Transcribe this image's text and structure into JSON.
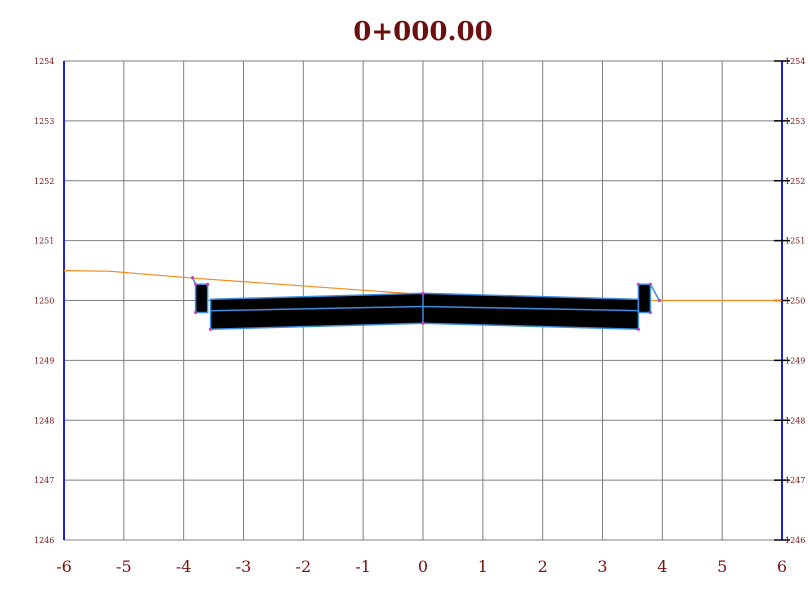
{
  "title": "0+000.00",
  "axes": {
    "x_ticks": [
      -6,
      -5,
      -4,
      -3,
      -2,
      -1,
      0,
      1,
      2,
      3,
      4,
      5,
      6
    ],
    "y_ticks": [
      1246,
      1247,
      1248,
      1249,
      1250,
      1251,
      1252,
      1253,
      1254
    ],
    "x_range": [
      -6,
      6
    ],
    "y_range": [
      1246,
      1254
    ],
    "grid": true
  },
  "colors": {
    "frame": "#1f1fd6",
    "ground_line": "#f08a1c",
    "pavement_fill": "#000000",
    "pavement_edge": "#3a8de0",
    "text": "#7a1010"
  },
  "section": {
    "ground_line": [
      [
        -6,
        1250.5
      ],
      [
        -5.25,
        1250.49
      ],
      [
        -3.8,
        1250.37
      ],
      [
        0,
        1250.1
      ],
      [
        1,
        1250.02
      ],
      [
        4,
        1250.0
      ],
      [
        6,
        1250.0
      ]
    ],
    "pavement_outer": [
      [
        -3.55,
        1250.02
      ],
      [
        0,
        1250.12
      ],
      [
        3.6,
        1250.02
      ],
      [
        3.6,
        1249.52
      ],
      [
        0,
        1249.62
      ],
      [
        -3.55,
        1249.52
      ]
    ],
    "layer_lines": [
      [
        [
          -3.55,
          1249.83
        ],
        [
          0,
          1249.9
        ],
        [
          3.6,
          1249.83
        ]
      ]
    ],
    "centerline": [
      [
        0,
        1250.12
      ],
      [
        0,
        1249.62
      ]
    ],
    "left_curb": [
      [
        -3.8,
        1250.27
      ],
      [
        -3.6,
        1250.27
      ],
      [
        -3.6,
        1249.8
      ],
      [
        -3.8,
        1249.8
      ]
    ],
    "right_curb": [
      [
        3.6,
        1250.27
      ],
      [
        3.8,
        1250.27
      ],
      [
        3.8,
        1249.8
      ],
      [
        3.6,
        1249.8
      ]
    ],
    "left_slope": [
      [
        -3.85,
        1250.38
      ],
      [
        -3.8,
        1250.27
      ]
    ],
    "right_slope": [
      [
        3.8,
        1250.27
      ],
      [
        3.95,
        1250.0
      ]
    ],
    "points": [
      [
        -3.85,
        1250.38
      ],
      [
        -3.8,
        1250.27
      ],
      [
        -3.8,
        1249.8
      ],
      [
        -3.6,
        1250.27
      ],
      [
        -3.55,
        1249.52
      ],
      [
        0,
        1250.12
      ],
      [
        0,
        1249.62
      ],
      [
        3.6,
        1249.52
      ],
      [
        3.6,
        1250.27
      ],
      [
        3.8,
        1250.27
      ],
      [
        3.8,
        1249.8
      ],
      [
        3.95,
        1250.0
      ]
    ]
  }
}
